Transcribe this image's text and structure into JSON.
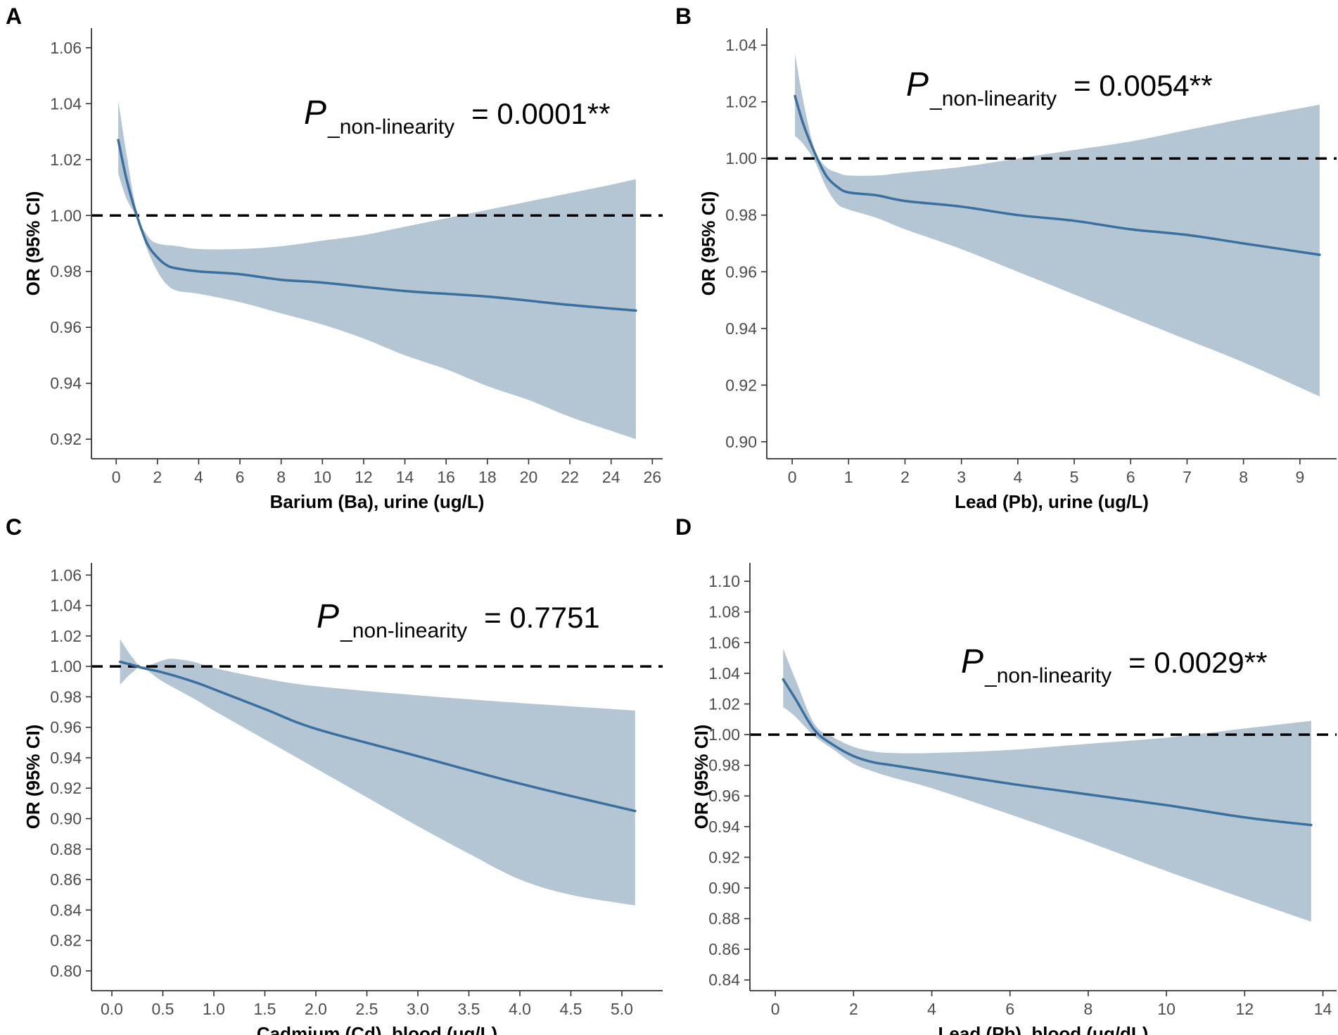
{
  "figure_title": "",
  "colors": {
    "line": "#3a6f9f",
    "band": "#b4c6d3",
    "reference": "#000000",
    "axis": "#333333"
  },
  "chart_data": [
    {
      "panel": "A",
      "type": "line",
      "title": "",
      "xlabel": "Barium (Ba), urine (ug/L)",
      "ylabel": "OR (95% CI)",
      "xlim": [
        -1.2,
        26.5
      ],
      "ylim": [
        0.913,
        1.067
      ],
      "xticks": [
        0,
        2,
        4,
        6,
        8,
        10,
        12,
        14,
        16,
        18,
        20,
        22,
        24,
        26
      ],
      "xtick_labels": [
        "0",
        "2",
        "4",
        "6",
        "8",
        "10",
        "12",
        "14",
        "16",
        "18",
        "20",
        "22",
        "24",
        "26"
      ],
      "yticks": [
        0.92,
        0.94,
        0.96,
        0.98,
        1.0,
        1.02,
        1.04,
        1.06
      ],
      "ytick_labels": [
        "0.92",
        "0.94",
        "0.96",
        "0.98",
        "1.00",
        "1.02",
        "1.04",
        "1.06"
      ],
      "reference_line": 1.0,
      "annotation": {
        "p": "P",
        "sub": "_non-linearity",
        "value": "= 0.0001**"
      },
      "series": [
        {
          "name": "OR",
          "x": [
            0.1,
            0.5,
            1.0,
            1.5,
            2.0,
            2.5,
            3.0,
            4.0,
            6.0,
            8.0,
            10.0,
            14.0,
            18.0,
            22.0,
            25.2
          ],
          "y": [
            1.027,
            1.013,
            1.0,
            0.99,
            0.985,
            0.982,
            0.981,
            0.98,
            0.979,
            0.977,
            0.976,
            0.973,
            0.971,
            0.968,
            0.966
          ]
        },
        {
          "name": "95% CI upper",
          "x": [
            0.1,
            0.5,
            1.0,
            1.5,
            2.0,
            3.0,
            4.0,
            6.0,
            8.0,
            10.0,
            12.0,
            14.0,
            16.0,
            18.0,
            20.0,
            22.0,
            24.0,
            25.2
          ],
          "y": [
            1.041,
            1.022,
            1.001,
            0.993,
            0.99,
            0.989,
            0.988,
            0.988,
            0.989,
            0.991,
            0.993,
            0.996,
            0.999,
            1.002,
            1.005,
            1.008,
            1.011,
            1.013
          ]
        },
        {
          "name": "95% CI lower",
          "x": [
            0.1,
            0.5,
            1.0,
            1.5,
            2.0,
            2.5,
            3.0,
            4.0,
            6.0,
            8.0,
            10.0,
            12.0,
            14.0,
            16.0,
            18.0,
            20.0,
            22.0,
            24.0,
            25.2
          ],
          "y": [
            1.015,
            1.006,
            0.999,
            0.988,
            0.98,
            0.975,
            0.973,
            0.972,
            0.969,
            0.965,
            0.961,
            0.956,
            0.95,
            0.945,
            0.939,
            0.934,
            0.928,
            0.923,
            0.92
          ]
        }
      ]
    },
    {
      "panel": "B",
      "type": "line",
      "title": "",
      "xlabel": "Lead (Pb), urine (ug/L)",
      "ylabel": "OR (95% CI)",
      "xlim": [
        -0.45,
        9.65
      ],
      "ylim": [
        0.894,
        1.046
      ],
      "xticks": [
        0,
        1,
        2,
        3,
        4,
        5,
        6,
        7,
        8,
        9
      ],
      "xtick_labels": [
        "0",
        "1",
        "2",
        "3",
        "4",
        "5",
        "6",
        "7",
        "8",
        "9"
      ],
      "yticks": [
        0.9,
        0.92,
        0.94,
        0.96,
        0.98,
        1.0,
        1.02,
        1.04
      ],
      "ytick_labels": [
        "0.90",
        "0.92",
        "0.94",
        "0.96",
        "0.98",
        "1.00",
        "1.02",
        "1.04"
      ],
      "reference_line": 1.0,
      "annotation": {
        "p": "P",
        "sub": "_non-linearity",
        "value": "= 0.0054**"
      },
      "series": [
        {
          "name": "OR",
          "x": [
            0.05,
            0.2,
            0.4,
            0.6,
            0.8,
            1.0,
            1.5,
            2.0,
            3.0,
            4.0,
            5.0,
            6.0,
            7.0,
            8.0,
            9.35
          ],
          "y": [
            1.022,
            1.012,
            1.002,
            0.994,
            0.99,
            0.988,
            0.987,
            0.985,
            0.983,
            0.98,
            0.978,
            0.975,
            0.973,
            0.97,
            0.966
          ]
        },
        {
          "name": "95% CI upper",
          "x": [
            0.05,
            0.2,
            0.4,
            0.6,
            0.8,
            1.0,
            1.5,
            2.0,
            3.0,
            4.0,
            5.0,
            6.0,
            7.0,
            8.0,
            9.35
          ],
          "y": [
            1.037,
            1.02,
            1.003,
            0.997,
            0.995,
            0.994,
            0.994,
            0.995,
            0.997,
            1.0,
            1.003,
            1.006,
            1.01,
            1.014,
            1.019
          ]
        },
        {
          "name": "95% CI lower",
          "x": [
            0.05,
            0.2,
            0.4,
            0.6,
            0.8,
            1.0,
            1.5,
            2.0,
            3.0,
            4.0,
            5.0,
            6.0,
            7.0,
            8.0,
            9.35
          ],
          "y": [
            1.008,
            1.005,
            0.999,
            0.99,
            0.984,
            0.982,
            0.979,
            0.975,
            0.968,
            0.96,
            0.952,
            0.944,
            0.936,
            0.928,
            0.916
          ]
        }
      ]
    },
    {
      "panel": "C",
      "type": "line",
      "title": "",
      "xlabel": "Cadmium (Cd), blood (ug/L)",
      "ylabel": "OR (95% CI)",
      "xlim": [
        -0.2,
        5.4
      ],
      "ylim": [
        0.787,
        1.068
      ],
      "xticks": [
        0.0,
        0.5,
        1.0,
        1.5,
        2.0,
        2.5,
        3.0,
        3.5,
        4.0,
        4.5,
        5.0
      ],
      "xtick_labels": [
        "0.0",
        "0.5",
        "1.0",
        "1.5",
        "2.0",
        "2.5",
        "3.0",
        "3.5",
        "4.0",
        "4.5",
        "5.0"
      ],
      "yticks": [
        0.8,
        0.82,
        0.84,
        0.86,
        0.88,
        0.9,
        0.92,
        0.94,
        0.96,
        0.98,
        1.0,
        1.02,
        1.04,
        1.06
      ],
      "ytick_labels": [
        "0.80",
        "0.82",
        "0.84",
        "0.86",
        "0.88",
        "0.90",
        "0.92",
        "0.94",
        "0.96",
        "0.98",
        "1.00",
        "1.02",
        "1.04",
        "1.06"
      ],
      "reference_line": 1.0,
      "annotation": {
        "p": "P",
        "sub": "_non-linearity",
        "value": "= 0.7751"
      },
      "series": [
        {
          "name": "OR",
          "x": [
            0.08,
            0.2,
            0.3,
            0.5,
            0.8,
            1.0,
            1.5,
            2.0,
            3.0,
            4.0,
            5.13
          ],
          "y": [
            1.003,
            1.001,
            0.999,
            0.996,
            0.99,
            0.985,
            0.972,
            0.959,
            0.941,
            0.923,
            0.905
          ]
        },
        {
          "name": "95% CI upper",
          "x": [
            0.08,
            0.2,
            0.3,
            0.5,
            0.6,
            0.8,
            1.0,
            1.5,
            2.0,
            3.0,
            4.0,
            5.13
          ],
          "y": [
            1.018,
            1.006,
            1.0,
            1.004,
            1.005,
            1.003,
            0.999,
            0.992,
            0.987,
            0.981,
            0.976,
            0.971
          ]
        },
        {
          "name": "95% CI lower",
          "x": [
            0.08,
            0.2,
            0.3,
            0.5,
            0.8,
            1.0,
            1.5,
            2.0,
            2.5,
            3.0,
            3.5,
            4.0,
            4.5,
            5.13
          ],
          "y": [
            0.988,
            0.996,
            0.999,
            0.99,
            0.979,
            0.971,
            0.952,
            0.933,
            0.914,
            0.895,
            0.877,
            0.86,
            0.85,
            0.843
          ]
        }
      ]
    },
    {
      "panel": "D",
      "type": "line",
      "title": "",
      "xlabel": "Lead (Pb), blood (ug/dL)",
      "ylabel": "OR (95% CI)",
      "xlim": [
        -0.65,
        14.35
      ],
      "ylim": [
        0.833,
        1.112
      ],
      "xticks": [
        0,
        2,
        4,
        6,
        8,
        10,
        12,
        14
      ],
      "xtick_labels": [
        "0",
        "2",
        "4",
        "6",
        "8",
        "10",
        "12",
        "14"
      ],
      "yticks": [
        0.84,
        0.86,
        0.88,
        0.9,
        0.92,
        0.94,
        0.96,
        0.98,
        1.0,
        1.02,
        1.04,
        1.06,
        1.08,
        1.1
      ],
      "ytick_labels": [
        "0.84",
        "0.86",
        "0.88",
        "0.90",
        "0.92",
        "0.94",
        "0.96",
        "0.98",
        "1.00",
        "1.02",
        "1.04",
        "1.06",
        "1.08",
        "1.10"
      ],
      "reference_line": 1.0,
      "annotation": {
        "p": "P",
        "sub": "_non-linearity",
        "value": "= 0.0029**"
      },
      "series": [
        {
          "name": "OR",
          "x": [
            0.2,
            0.5,
            1.0,
            1.5,
            2.0,
            2.5,
            3.0,
            4.0,
            6.0,
            8.0,
            10.0,
            12.0,
            13.7
          ],
          "y": [
            1.036,
            1.024,
            1.003,
            0.993,
            0.986,
            0.982,
            0.98,
            0.976,
            0.968,
            0.961,
            0.954,
            0.946,
            0.941
          ]
        },
        {
          "name": "95% CI upper",
          "x": [
            0.2,
            0.5,
            1.0,
            1.5,
            2.0,
            2.5,
            3.0,
            4.0,
            6.0,
            8.0,
            10.0,
            12.0,
            13.7
          ],
          "y": [
            1.056,
            1.037,
            1.007,
            0.998,
            0.992,
            0.989,
            0.988,
            0.988,
            0.99,
            0.994,
            0.998,
            1.004,
            1.009
          ]
        },
        {
          "name": "95% CI lower",
          "x": [
            0.2,
            0.5,
            1.0,
            1.5,
            2.0,
            2.5,
            3.0,
            4.0,
            6.0,
            8.0,
            10.0,
            12.0,
            13.7
          ],
          "y": [
            1.018,
            1.012,
            0.999,
            0.99,
            0.981,
            0.976,
            0.972,
            0.965,
            0.948,
            0.93,
            0.911,
            0.893,
            0.878
          ]
        }
      ]
    }
  ]
}
